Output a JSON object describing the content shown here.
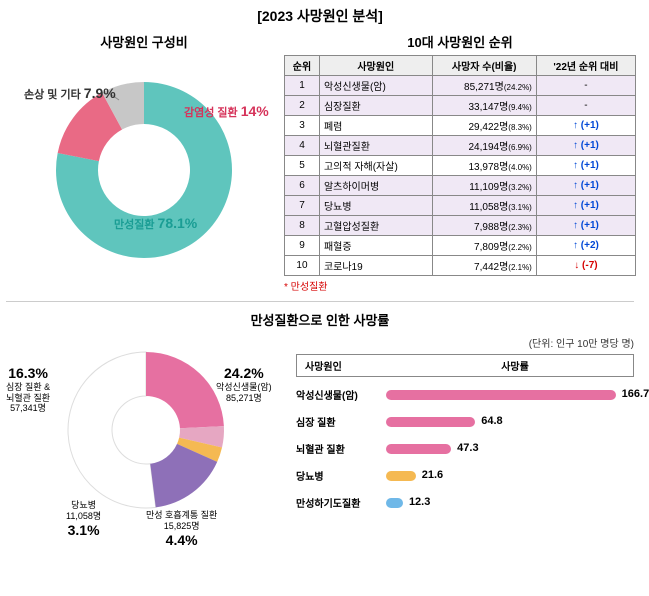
{
  "main_title": "[2023 사망원인 분석]",
  "donut1": {
    "title": "사망원인 구성비",
    "slices": [
      {
        "name": "만성질환",
        "pct": 78.1,
        "color": "#5fc5bd",
        "label_color": "#1a9d94"
      },
      {
        "name": "감염성 질환",
        "pct": 14.0,
        "color": "#e96a85",
        "label_color": "#d6335a"
      },
      {
        "name": "손상 및 기타",
        "pct": 7.9,
        "color": "#c7c7c7",
        "label_color": "#333333"
      }
    ],
    "inner_radius": 46,
    "outer_radius": 88,
    "background": "#ffffff"
  },
  "table": {
    "title": "10대 사망원인 순위",
    "headers": [
      "순위",
      "사망원인",
      "사망자 수(비율)",
      "'22년 순위 대비"
    ],
    "rows": [
      {
        "rank": 1,
        "name": "악성신생물(암)",
        "count": "85,271명",
        "pct": "(24.2%)",
        "change": "-",
        "chronic": true
      },
      {
        "rank": 2,
        "name": "심장질환",
        "count": "33,147명",
        "pct": "(9.4%)",
        "change": "-",
        "chronic": true
      },
      {
        "rank": 3,
        "name": "폐렴",
        "count": "29,422명",
        "pct": "(8.3%)",
        "change": "↑ (+1)",
        "dir": "up"
      },
      {
        "rank": 4,
        "name": "뇌혈관질환",
        "count": "24,194명",
        "pct": "(6.9%)",
        "change": "↑ (+1)",
        "chronic": true,
        "dir": "up"
      },
      {
        "rank": 5,
        "name": "고의적 자해(자살)",
        "count": "13,978명",
        "pct": "(4.0%)",
        "change": "↑ (+1)",
        "dir": "up"
      },
      {
        "rank": 6,
        "name": "알츠하이머병",
        "count": "11,109명",
        "pct": "(3.2%)",
        "change": "↑ (+1)",
        "chronic": true,
        "dir": "up"
      },
      {
        "rank": 7,
        "name": "당뇨병",
        "count": "11,058명",
        "pct": "(3.1%)",
        "change": "↑ (+1)",
        "chronic": true,
        "dir": "up"
      },
      {
        "rank": 8,
        "name": "고혈압성질환",
        "count": "7,988명",
        "pct": "(2.3%)",
        "change": "↑ (+1)",
        "chronic": true,
        "dir": "up"
      },
      {
        "rank": 9,
        "name": "패혈증",
        "count": "7,809명",
        "pct": "(2.2%)",
        "change": "↑ (+2)",
        "dir": "up"
      },
      {
        "rank": 10,
        "name": "코로나19",
        "count": "7,442명",
        "pct": "(2.1%)",
        "change": "↓ (-7)",
        "dir": "down"
      }
    ],
    "footnote": "* 만성질환"
  },
  "donut2": {
    "title": "만성질환으로 인한 사망률",
    "slices": [
      {
        "name": "악성신생물(암)",
        "sub": "85,271명",
        "pct": 24.2,
        "color": "#e670a1"
      },
      {
        "name": "만성 호흡계통 질환",
        "sub": "15,825명",
        "pct": 4.4,
        "color": "#e6a7c2"
      },
      {
        "name": "당뇨병",
        "sub": "11,058명",
        "pct": 3.1,
        "color": "#f5b952"
      },
      {
        "name": "심장 질환 & 뇌혈관 질환",
        "sub": "57,341명",
        "pct": 16.3,
        "color": "#8e70b8"
      },
      {
        "name": "other",
        "sub": "",
        "pct": 52.0,
        "color": "#ffffff"
      }
    ],
    "inner_radius": 34,
    "outer_radius": 78
  },
  "bars": {
    "unit_note": "(단위: 인구 10만 명당 명)",
    "header_cause": "사망원인",
    "header_rate": "사망률",
    "max": 180,
    "rows": [
      {
        "name": "악성신생물(암)",
        "value": 166.7,
        "color": "#e670a1"
      },
      {
        "name": "심장 질환",
        "value": 64.8,
        "color": "#e670a1"
      },
      {
        "name": "뇌혈관 질환",
        "value": 47.3,
        "color": "#e670a1"
      },
      {
        "name": "당뇨병",
        "value": 21.6,
        "color": "#f5b952"
      },
      {
        "name": "만성하기도질환",
        "value": 12.3,
        "color": "#6fb8e8"
      }
    ]
  }
}
